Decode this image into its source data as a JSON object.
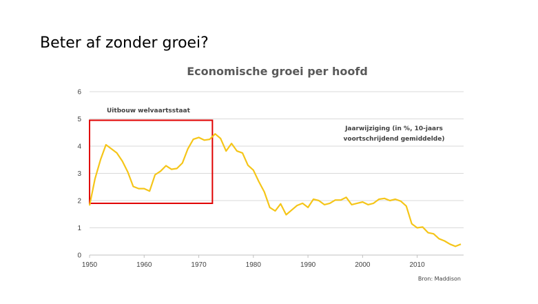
{
  "slide": {
    "title": "Beter af zonder groei?"
  },
  "chart_data": {
    "type": "line",
    "title": "Economische groei per hoofd",
    "xlabel": "",
    "ylabel": "",
    "xlim": [
      1950,
      2018.5
    ],
    "ylim": [
      0,
      6
    ],
    "xticks": [
      1950,
      1960,
      1970,
      1980,
      1990,
      2000,
      2010
    ],
    "yticks": [
      0,
      1,
      2,
      3,
      4,
      5,
      6
    ],
    "grid": "horizontal",
    "line_color": "#F5C518",
    "series": [
      {
        "name": "",
        "x": [
          1950,
          1951,
          1952,
          1953,
          1954,
          1955,
          1956,
          1957,
          1958,
          1959,
          1960,
          1961,
          1962,
          1963,
          1964,
          1965,
          1966,
          1967,
          1968,
          1969,
          1970,
          1971,
          1972,
          1973,
          1974,
          1975,
          1976,
          1977,
          1978,
          1979,
          1980,
          1981,
          1982,
          1983,
          1984,
          1985,
          1986,
          1987,
          1988,
          1989,
          1990,
          1991,
          1992,
          1993,
          1994,
          1995,
          1996,
          1997,
          1998,
          1999,
          2000,
          2001,
          2002,
          2003,
          2004,
          2005,
          2006,
          2007,
          2008,
          2009,
          2010,
          2011,
          2012,
          2013,
          2014,
          2015,
          2016,
          2017,
          2018
        ],
        "y": [
          1.82,
          2.8,
          3.5,
          4.05,
          3.9,
          3.75,
          3.45,
          3.05,
          2.52,
          2.44,
          2.44,
          2.35,
          2.95,
          3.08,
          3.28,
          3.15,
          3.18,
          3.38,
          3.9,
          4.25,
          4.32,
          4.22,
          4.25,
          4.45,
          4.28,
          3.82,
          4.1,
          3.82,
          3.75,
          3.3,
          3.12,
          2.7,
          2.32,
          1.75,
          1.62,
          1.88,
          1.48,
          1.65,
          1.82,
          1.9,
          1.75,
          2.05,
          2.0,
          1.85,
          1.9,
          2.02,
          2.02,
          2.12,
          1.85,
          1.9,
          1.95,
          1.85,
          1.9,
          2.05,
          2.08,
          2.0,
          2.05,
          1.98,
          1.8,
          1.15,
          1.0,
          1.03,
          0.82,
          0.78,
          0.6,
          0.52,
          0.4,
          0.32,
          0.4
        ]
      }
    ],
    "annotations": {
      "box_label": "Uitbouw welvaartsstaat",
      "box_range": {
        "x": [
          1950,
          1972.5
        ],
        "y": [
          1.9,
          4.95
        ]
      },
      "box_color": "#E00000",
      "series_note_line1": "Jaarwijziging (in %, 10-jaars",
      "series_note_line2": "voortschrijdend gemiddelde)",
      "source": "Bron: Maddison"
    }
  }
}
